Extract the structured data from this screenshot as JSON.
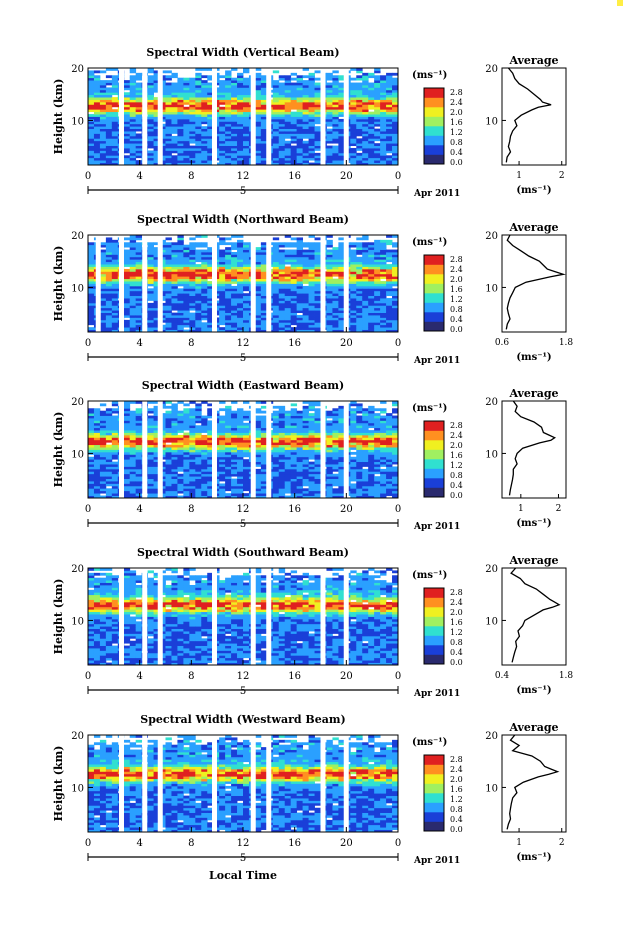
{
  "figure": {
    "xlabel": "Local Time",
    "date_label": "Apr 2011",
    "day_label": "5",
    "colorbar_unit": "(ms⁻¹)",
    "colorbar_ticks": [
      "2.8",
      "2.4",
      "2.0",
      "1.6",
      "1.2",
      "0.8",
      "0.4",
      "0.0"
    ],
    "avg_title": "Average",
    "avg_xlabel": "(ms⁻¹)"
  },
  "chart_data": [
    {
      "type": "heatmap",
      "title": "Spectral Width (Vertical Beam)",
      "ylabel": "Height (km)",
      "xticks": [
        "0",
        "4",
        "8",
        "12",
        "16",
        "20",
        "0"
      ],
      "yticks": [
        "20",
        "10"
      ],
      "xlim": [
        0,
        24
      ],
      "ylim": [
        1.5,
        20
      ],
      "gaps": [
        2.4,
        4.2,
        5.4,
        9.6,
        12.6,
        13.8,
        18.0,
        19.8
      ],
      "peak_height": 12.8,
      "colorscale": {
        "min": 0.0,
        "max": 3.0,
        "colors": [
          "#2a2a6e",
          "#1a3fd8",
          "#2aa0ff",
          "#30e0d0",
          "#a0f060",
          "#f0f020",
          "#ff9020",
          "#e02020"
        ]
      },
      "average": {
        "xlim": [
          0.6,
          2.1
        ],
        "xticks": [
          "1",
          "2"
        ],
        "heights": [
          20,
          19,
          18,
          17,
          16,
          15,
          14,
          13.5,
          13,
          12.5,
          12,
          11,
          10,
          9,
          8,
          7,
          6,
          5,
          4,
          3,
          2
        ],
        "values": [
          0.75,
          0.85,
          0.9,
          1.0,
          1.2,
          1.35,
          1.5,
          1.55,
          1.75,
          1.45,
          1.3,
          1.05,
          0.9,
          0.95,
          0.85,
          0.8,
          0.78,
          0.75,
          0.8,
          0.72,
          0.7
        ]
      }
    },
    {
      "type": "heatmap",
      "title": "Spectral Width (Northward Beam)",
      "ylabel": "Height (km)",
      "xticks": [
        "0",
        "4",
        "8",
        "12",
        "16",
        "20",
        "0"
      ],
      "yticks": [
        "20",
        "10"
      ],
      "xlim": [
        0,
        24
      ],
      "ylim": [
        1.5,
        20
      ],
      "gaps": [
        0.6,
        2.4,
        4.2,
        5.4,
        9.6,
        12.6,
        13.8,
        18.0,
        19.8
      ],
      "peak_height": 12.5,
      "colorscale": {
        "min": 0.0,
        "max": 3.0,
        "colors": [
          "#2a2a6e",
          "#1a3fd8",
          "#2aa0ff",
          "#30e0d0",
          "#a0f060",
          "#f0f020",
          "#ff9020",
          "#e02020"
        ]
      },
      "average": {
        "xlim": [
          0.6,
          1.8
        ],
        "xticks": [
          "0.6",
          "1.8"
        ],
        "heights": [
          20,
          19,
          18,
          17,
          16,
          15,
          14,
          13.5,
          13,
          12.5,
          12,
          11,
          10,
          9,
          8,
          7,
          6,
          5,
          4,
          3,
          2
        ],
        "values": [
          0.75,
          0.7,
          0.8,
          0.95,
          1.1,
          1.3,
          1.4,
          1.45,
          1.6,
          1.75,
          1.5,
          1.05,
          0.85,
          0.8,
          0.75,
          0.72,
          0.7,
          0.72,
          0.75,
          0.7,
          0.68
        ]
      }
    },
    {
      "type": "heatmap",
      "title": "Spectral Width (Eastward Beam)",
      "ylabel": "Height (km)",
      "xticks": [
        "0",
        "4",
        "8",
        "12",
        "16",
        "20",
        "0"
      ],
      "yticks": [
        "20",
        "10"
      ],
      "xlim": [
        0,
        24
      ],
      "ylim": [
        1.5,
        20
      ],
      "gaps": [
        2.4,
        4.2,
        5.4,
        9.6,
        12.6,
        13.8,
        18.0,
        19.8
      ],
      "peak_height": 12.3,
      "colorscale": {
        "min": 0.0,
        "max": 3.0,
        "colors": [
          "#2a2a6e",
          "#1a3fd8",
          "#2aa0ff",
          "#30e0d0",
          "#a0f060",
          "#f0f020",
          "#ff9020",
          "#e02020"
        ]
      },
      "average": {
        "xlim": [
          0.5,
          2.2
        ],
        "xticks": [
          "1",
          "2"
        ],
        "heights": [
          20,
          19,
          18,
          17,
          16,
          15,
          14,
          13.5,
          13,
          12.5,
          12,
          11,
          10,
          9,
          8,
          7,
          6,
          5,
          4,
          3,
          2
        ],
        "values": [
          0.8,
          0.9,
          0.85,
          1.0,
          1.35,
          1.55,
          1.6,
          1.75,
          1.9,
          1.8,
          1.5,
          1.05,
          0.9,
          0.85,
          0.9,
          0.8,
          0.8,
          0.78,
          0.75,
          0.72,
          0.7
        ]
      }
    },
    {
      "type": "heatmap",
      "title": "Spectral Width (Southward Beam)",
      "ylabel": "Height (km)",
      "xticks": [
        "0",
        "4",
        "8",
        "12",
        "16",
        "20",
        "0"
      ],
      "yticks": [
        "20",
        "10"
      ],
      "xlim": [
        0,
        24
      ],
      "ylim": [
        1.5,
        20
      ],
      "gaps": [
        2.4,
        4.2,
        5.4,
        9.6,
        12.6,
        13.8,
        18.0,
        19.8
      ],
      "peak_height": 13.0,
      "colorscale": {
        "min": 0.0,
        "max": 3.0,
        "colors": [
          "#2a2a6e",
          "#1a3fd8",
          "#2aa0ff",
          "#30e0d0",
          "#a0f060",
          "#f0f020",
          "#ff9020",
          "#e02020"
        ]
      },
      "average": {
        "xlim": [
          0.4,
          1.8
        ],
        "xticks": [
          "0.4",
          "1.8"
        ],
        "heights": [
          20,
          19,
          18,
          17,
          16,
          15,
          14,
          13.5,
          13,
          12.5,
          12,
          11,
          10,
          9,
          8,
          7,
          6,
          5,
          4,
          3,
          2
        ],
        "values": [
          0.7,
          0.6,
          0.8,
          0.9,
          1.15,
          1.3,
          1.45,
          1.55,
          1.65,
          1.5,
          1.3,
          1.1,
          0.9,
          0.85,
          0.75,
          0.78,
          0.7,
          0.72,
          0.68,
          0.65,
          0.62
        ]
      }
    },
    {
      "type": "heatmap",
      "title": "Spectral Width (Westward Beam)",
      "ylabel": "Height (km)",
      "xticks": [
        "0",
        "4",
        "8",
        "12",
        "16",
        "20",
        "0"
      ],
      "yticks": [
        "20",
        "10"
      ],
      "xlim": [
        0,
        24
      ],
      "ylim": [
        1.5,
        20
      ],
      "gaps": [
        2.4,
        4.2,
        5.4,
        9.6,
        12.6,
        13.8,
        18.0,
        19.8
      ],
      "peak_height": 12.6,
      "colorscale": {
        "min": 0.0,
        "max": 3.0,
        "colors": [
          "#2a2a6e",
          "#1a3fd8",
          "#2aa0ff",
          "#30e0d0",
          "#a0f060",
          "#f0f020",
          "#ff9020",
          "#e02020"
        ]
      },
      "average": {
        "xlim": [
          0.6,
          2.1
        ],
        "xticks": [
          "1",
          "2"
        ],
        "heights": [
          20,
          19,
          18,
          17,
          16,
          15,
          14,
          13.5,
          13,
          12.5,
          12,
          11,
          10,
          9,
          8,
          7,
          6,
          5,
          4,
          3,
          2
        ],
        "values": [
          0.9,
          0.8,
          1.0,
          0.85,
          1.3,
          1.5,
          1.6,
          1.75,
          1.9,
          1.7,
          1.45,
          1.1,
          0.9,
          0.95,
          0.85,
          0.82,
          0.8,
          0.78,
          0.8,
          0.75,
          0.72
        ]
      }
    }
  ]
}
